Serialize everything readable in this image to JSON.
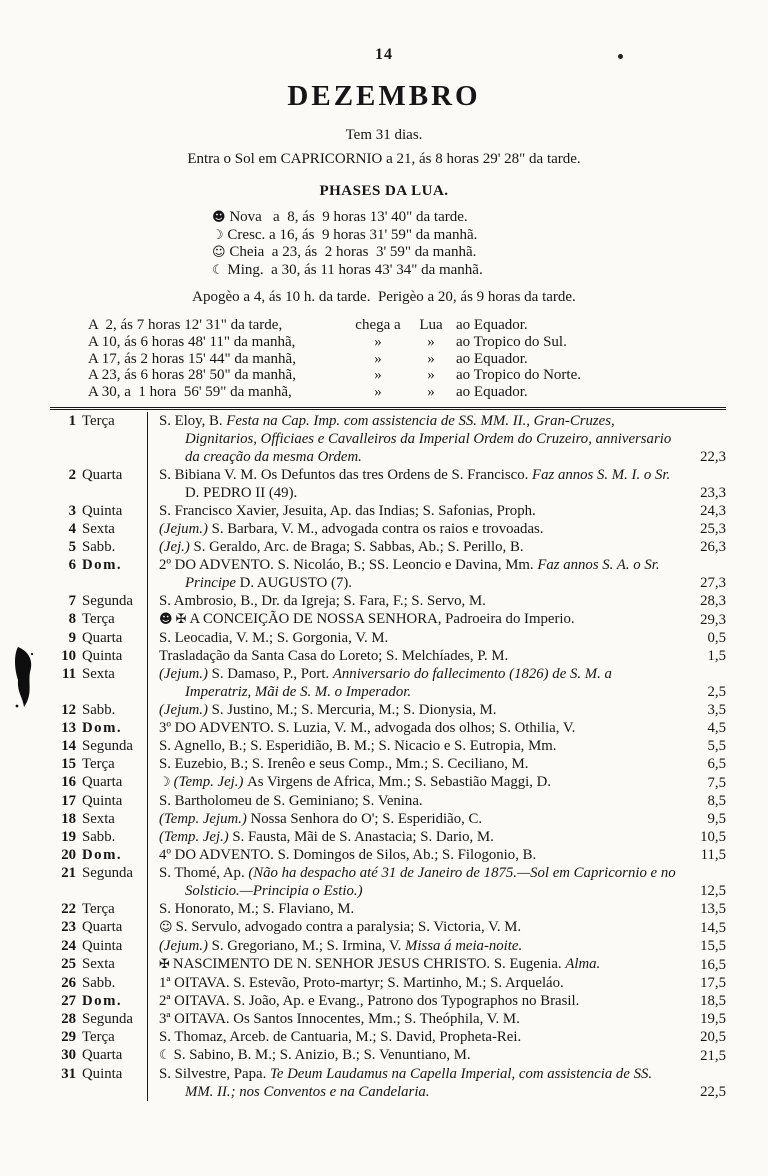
{
  "page": {
    "number": "14",
    "title": "DEZEMBRO",
    "days_line": "Tem 31 dias.",
    "sun_line": "Entra o Sol em CAPRICORNIO a 21, ás 8 horas 29' 28\" da tarde.",
    "phases_heading": "PHASES DA LUA.",
    "phases": [
      {
        "icon": "new-moon-icon",
        "glyph": "☻",
        "text": " Nova   a  8, ás  9 horas 13' 40\" da tarde."
      },
      {
        "icon": "crescent-moon-icon",
        "glyph": "☽",
        "text": " Cresc. a 16, ás  9 horas 31' 59\" da manhã."
      },
      {
        "icon": "full-moon-icon",
        "glyph": "☺",
        "text": " Cheia  a 23, ás  2 horas  3' 59\" da manhã."
      },
      {
        "icon": "waning-moon-icon",
        "glyph": "☾",
        "text": " Ming.  a 30, ás 11 horas 43' 34\" da manhã."
      }
    ],
    "apside_line": "Apogèo a 4, ás 10 h. da tarde.  Perigèo a 20, ás 9 horas da tarde.",
    "moon_positions": [
      {
        "time": "A  2, ás 7 horas 12' 31\" da tarde,",
        "m1": "chega a",
        "m2": "Lua",
        "dest": "ao Equador."
      },
      {
        "time": "A 10, ás 6 horas 48' 11\" da manhã,",
        "m1": "»",
        "m2": "»",
        "dest": "ao Tropico do Sul."
      },
      {
        "time": "A 17, ás 2 horas 15' 44\" da manhã,",
        "m1": "»",
        "m2": "»",
        "dest": "ao Equador."
      },
      {
        "time": "A 23, ás 6 horas 28' 50\" da manhã,",
        "m1": "»",
        "m2": "»",
        "dest": "ao Tropico do Norte."
      },
      {
        "time": "A 30, a  1 hora  56' 59\" da manhã,",
        "m1": "»",
        "m2": "»",
        "dest": "ao Equador."
      }
    ]
  },
  "calendar": {
    "rows": [
      {
        "day": "1",
        "weekday": "Terça",
        "sunday": false,
        "icons": [],
        "value": "22,3",
        "segments": [
          {
            "t": "S. Eloy, B. "
          },
          {
            "t": "Festa na Cap. Imp. com assistencia de SS. MM. II., Gran-Cruzes, Dignitarios, Officiaes e Cavalleiros da Imperial Ordem do Cruzeiro, anniversario da creação da mesma Ordem.",
            "i": true
          }
        ]
      },
      {
        "day": "2",
        "weekday": "Quarta",
        "sunday": false,
        "icons": [],
        "value": "23,3",
        "segments": [
          {
            "t": "S. Bibiana V. M. Os Defuntos das tres Ordens de S. Francisco. "
          },
          {
            "t": "Faz annos S. M. I. o Sr. ",
            "i": true
          },
          {
            "t": "D. PEDRO II (49)."
          }
        ]
      },
      {
        "day": "3",
        "weekday": "Quinta",
        "sunday": false,
        "icons": [],
        "value": "24,3",
        "segments": [
          {
            "t": "S. Francisco Xavier, Jesuita, Ap. das Indias; S. Safonias, Proph."
          }
        ]
      },
      {
        "day": "4",
        "weekday": "Sexta",
        "sunday": false,
        "icons": [],
        "value": "25,3",
        "segments": [
          {
            "t": "(Jejum.) ",
            "i": true
          },
          {
            "t": "S. Barbara, V. M., advogada contra os raios e trovoadas."
          }
        ]
      },
      {
        "day": "5",
        "weekday": "Sabb.",
        "sunday": false,
        "icons": [],
        "value": "26,3",
        "segments": [
          {
            "t": "(Jej.) ",
            "i": true
          },
          {
            "t": "S. Geraldo, Arc. de Braga; S. Sabbas, Ab.; S. Perillo, B."
          }
        ]
      },
      {
        "day": "6",
        "weekday": "Dom.",
        "sunday": true,
        "icons": [],
        "value": "27,3",
        "segments": [
          {
            "t": "2º DO ADVENTO. S. Nicoláo, B.; SS. Leoncio e Davina, Mm. "
          },
          {
            "t": "Faz annos S. A. o Sr. Principe ",
            "i": true
          },
          {
            "t": "D. AUGUSTO (7)."
          }
        ]
      },
      {
        "day": "7",
        "weekday": "Segunda",
        "sunday": false,
        "icons": [],
        "value": "28,3",
        "segments": [
          {
            "t": "S. Ambrosio, B., Dr. da Igreja; S. Fara, F.; S. Servo, M."
          }
        ]
      },
      {
        "day": "8",
        "weekday": "Terça",
        "sunday": false,
        "icons": [
          {
            "glyph": "☻",
            "name": "new-moon-icon"
          },
          {
            "glyph": "✠",
            "name": "cross-icon"
          }
        ],
        "value": "29,3",
        "segments": [
          {
            "t": "A CONCEIÇÃO DE NOSSA SENHORA, Padroeira do Imperio."
          }
        ]
      },
      {
        "day": "9",
        "weekday": "Quarta",
        "sunday": false,
        "icons": [],
        "value": "0,5",
        "segments": [
          {
            "t": "S. Leocadia, V. M.; S. Gorgonia, V. M."
          }
        ]
      },
      {
        "day": "10",
        "weekday": "Quinta",
        "sunday": false,
        "icons": [],
        "value": "1,5",
        "segments": [
          {
            "t": "Trasladação da Santa Casa do Loreto; S. Melchíades, P. M."
          }
        ]
      },
      {
        "day": "11",
        "weekday": "Sexta",
        "sunday": false,
        "icons": [],
        "value": "2,5",
        "segments": [
          {
            "t": "(Jejum.) ",
            "i": true
          },
          {
            "t": "S. Damaso, P., Port. "
          },
          {
            "t": "Anniversario do fallecimento (1826) de S. M. a Imperatriz, Mãi de S. M. o Imperador.",
            "i": true
          }
        ]
      },
      {
        "day": "12",
        "weekday": "Sabb.",
        "sunday": false,
        "icons": [],
        "value": "3,5",
        "segments": [
          {
            "t": "(Jejum.) ",
            "i": true
          },
          {
            "t": "S. Justino, M.; S. Mercuria, M.; S. Dionysia, M."
          }
        ]
      },
      {
        "day": "13",
        "weekday": "Dom.",
        "sunday": true,
        "icons": [],
        "value": "4,5",
        "segments": [
          {
            "t": "3º DO ADVENTO. S. Luzia, V. M., advogada dos olhos; S. Othilia, V."
          }
        ]
      },
      {
        "day": "14",
        "weekday": "Segunda",
        "sunday": false,
        "icons": [],
        "value": "5,5",
        "segments": [
          {
            "t": "S. Agnello, B.; S. Esperidião, B. M.; S. Nicacio e S. Eutropia, Mm."
          }
        ]
      },
      {
        "day": "15",
        "weekday": "Terça",
        "sunday": false,
        "icons": [],
        "value": "6,5",
        "segments": [
          {
            "t": "S. Euzebio, B.; S. Irenêo e seus Comp., Mm.; S. Ceciliano, M."
          }
        ]
      },
      {
        "day": "16",
        "weekday": "Quarta",
        "sunday": false,
        "icons": [
          {
            "glyph": "☽",
            "name": "crescent-moon-icon"
          }
        ],
        "value": "7,5",
        "segments": [
          {
            "t": "(Temp. Jej.) ",
            "i": true
          },
          {
            "t": "As Virgens de Africa, Mm.; S. Sebastião Maggi, D."
          }
        ]
      },
      {
        "day": "17",
        "weekday": "Quinta",
        "sunday": false,
        "icons": [],
        "value": "8,5",
        "segments": [
          {
            "t": "S. Bartholomeu de S. Geminiano; S. Venina."
          }
        ]
      },
      {
        "day": "18",
        "weekday": "Sexta",
        "sunday": false,
        "icons": [],
        "value": "9,5",
        "segments": [
          {
            "t": "(Temp. Jejum.) ",
            "i": true
          },
          {
            "t": "Nossa Senhora do O'; S. Esperidião, C."
          }
        ]
      },
      {
        "day": "19",
        "weekday": "Sabb.",
        "sunday": false,
        "icons": [],
        "value": "10,5",
        "segments": [
          {
            "t": "(Temp. Jej.) ",
            "i": true
          },
          {
            "t": "S. Fausta, Mãi de S. Anastacia; S. Dario, M."
          }
        ]
      },
      {
        "day": "20",
        "weekday": "Dom.",
        "sunday": true,
        "icons": [],
        "value": "11,5",
        "segments": [
          {
            "t": "4º DO ADVENTO. S. Domingos de Silos, Ab.; S. Filogonio, B."
          }
        ]
      },
      {
        "day": "21",
        "weekday": "Segunda",
        "sunday": false,
        "icons": [],
        "value": "12,5",
        "segments": [
          {
            "t": "S. Thomé, Ap. "
          },
          {
            "t": "(Não ha despacho até 31 de Janeiro de 1875.—Sol em Capricornio e no Solsticio.—Principia o Estio.)",
            "i": true
          }
        ]
      },
      {
        "day": "22",
        "weekday": "Terça",
        "sunday": false,
        "icons": [],
        "value": "13,5",
        "segments": [
          {
            "t": "S. Honorato, M.; S. Flaviano, M."
          }
        ]
      },
      {
        "day": "23",
        "weekday": "Quarta",
        "sunday": false,
        "icons": [
          {
            "glyph": "☺",
            "name": "full-moon-icon"
          }
        ],
        "value": "14,5",
        "segments": [
          {
            "t": "S. Servulo, advogado contra a paralysia; S. Victoria, V. M."
          }
        ]
      },
      {
        "day": "24",
        "weekday": "Quinta",
        "sunday": false,
        "icons": [],
        "value": "15,5",
        "segments": [
          {
            "t": "(Jejum.) ",
            "i": true
          },
          {
            "t": "S. Gregoriano, M.; S. Irmina, V. "
          },
          {
            "t": "Missa á meia-noite.",
            "i": true
          }
        ]
      },
      {
        "day": "25",
        "weekday": "Sexta",
        "sunday": false,
        "icons": [
          {
            "glyph": "✠",
            "name": "cross-icon"
          }
        ],
        "value": "16,5",
        "segments": [
          {
            "t": "NASCIMENTO DE N. SENHOR JESUS CHRISTO. S. Eugenia. "
          },
          {
            "t": "Alma.",
            "i": true
          }
        ]
      },
      {
        "day": "26",
        "weekday": "Sabb.",
        "sunday": false,
        "icons": [],
        "value": "17,5",
        "segments": [
          {
            "t": "1ª OITAVA. S. Estevão, Proto-martyr; S. Martinho, M.; S. Arqueláo."
          }
        ]
      },
      {
        "day": "27",
        "weekday": "Dom.",
        "sunday": true,
        "icons": [],
        "value": "18,5",
        "segments": [
          {
            "t": "2ª OITAVA. S. João, Ap. e Evang., Patrono dos Typographos no Brasil."
          }
        ]
      },
      {
        "day": "28",
        "weekday": "Segunda",
        "sunday": false,
        "icons": [],
        "value": "19,5",
        "segments": [
          {
            "t": "3ª OITAVA. Os Santos Innocentes, Mm.; S. Theóphila, V. M."
          }
        ]
      },
      {
        "day": "29",
        "weekday": "Terça",
        "sunday": false,
        "icons": [],
        "value": "20,5",
        "segments": [
          {
            "t": "S. Thomaz, Arceb. de Cantuaria, M.; S. David, Propheta-Rei."
          }
        ]
      },
      {
        "day": "30",
        "weekday": "Quarta",
        "sunday": false,
        "icons": [
          {
            "glyph": "☾",
            "name": "waning-moon-icon"
          }
        ],
        "value": "21,5",
        "segments": [
          {
            "t": "S. Sabino, B. M.; S. Anizio, B.; S. Venuntiano, M."
          }
        ]
      },
      {
        "day": "31",
        "weekday": "Quinta",
        "sunday": false,
        "icons": [],
        "value": "22,5",
        "segments": [
          {
            "t": "S. Silvestre, Papa. "
          },
          {
            "t": "Te Deum Laudamus na Capella Imperial, com assistencia de SS. MM. II.; nos Conventos e na Candelaria.",
            "i": true
          }
        ]
      }
    ]
  }
}
